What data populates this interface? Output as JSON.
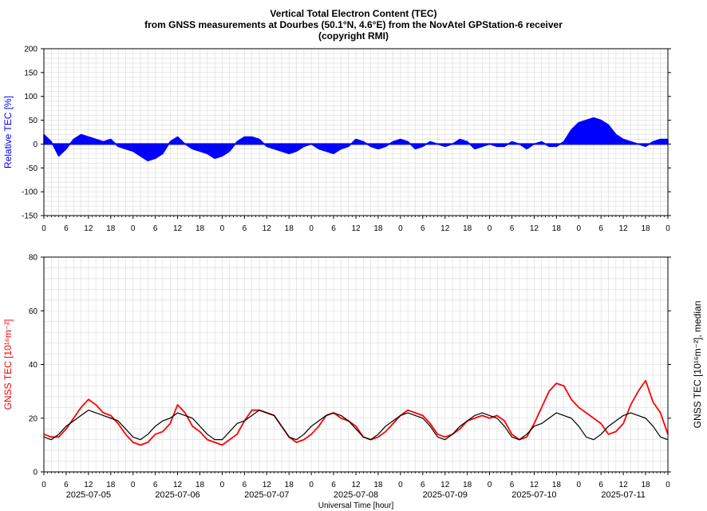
{
  "title_lines": [
    "Vertical Total Electron Content (TEC)",
    "from GNSS measurements at Dourbes (50.1°N, 4.6°E) from the NovAtel GPStation-6 receiver",
    "(copyright RMI)"
  ],
  "colors": {
    "relative": "#0000ff",
    "tec": "#ff0000",
    "median": "#000000",
    "grid": "#d9d9d9"
  },
  "chart_data": [
    {
      "type": "area",
      "ylabel": "Relative TEC [%]",
      "ylim": [
        -150,
        200
      ],
      "yticks": [
        -150,
        -100,
        -50,
        0,
        50,
        100,
        150,
        200
      ],
      "xlim": [
        0,
        168
      ],
      "xtick_labels": [
        "0",
        "6",
        "12",
        "18",
        "0",
        "6",
        "12",
        "18",
        "0",
        "6",
        "12",
        "18",
        "0",
        "6",
        "12",
        "18",
        "0",
        "6",
        "12",
        "18",
        "0",
        "6",
        "12",
        "18",
        "0",
        "6",
        "12",
        "18",
        "0"
      ],
      "grid": true,
      "series": [
        {
          "x": [
            0,
            2,
            4,
            6,
            8,
            10,
            12,
            14,
            16,
            18,
            20,
            22,
            24,
            26,
            28,
            30,
            32,
            34,
            36,
            38,
            40,
            42,
            44,
            46,
            48,
            50,
            52,
            54,
            56,
            58,
            60,
            62,
            64,
            66,
            68,
            70,
            72,
            74,
            76,
            78,
            80,
            82,
            84,
            86,
            88,
            90,
            92,
            94,
            96,
            98,
            100,
            102,
            104,
            106,
            108,
            110,
            112,
            114,
            116,
            118,
            120,
            122,
            124,
            126,
            128,
            130,
            132,
            134,
            136,
            138,
            140,
            142,
            144,
            146,
            148,
            150,
            152,
            154,
            156,
            158,
            160,
            162,
            164,
            166,
            168
          ],
          "values": [
            20,
            5,
            -25,
            -10,
            10,
            20,
            15,
            10,
            5,
            10,
            -5,
            -10,
            -15,
            -25,
            -35,
            -30,
            -20,
            5,
            15,
            0,
            -10,
            -15,
            -20,
            -30,
            -25,
            -15,
            5,
            15,
            15,
            10,
            -5,
            -10,
            -15,
            -20,
            -15,
            -5,
            0,
            -10,
            -15,
            -20,
            -10,
            -5,
            10,
            5,
            -5,
            -10,
            -5,
            5,
            10,
            5,
            -10,
            -5,
            5,
            0,
            -5,
            0,
            10,
            5,
            -10,
            -5,
            0,
            -5,
            -5,
            5,
            0,
            -10,
            0,
            5,
            -5,
            -5,
            5,
            30,
            45,
            50,
            55,
            50,
            40,
            20,
            10,
            5,
            0,
            -5,
            5,
            10,
            10
          ]
        }
      ]
    },
    {
      "type": "line",
      "ylabel": "GNSS TEC [10¹⁶m⁻²]",
      "y2label": "GNSS TEC [10¹⁶m⁻²], median",
      "xlabel": "Universal Time [hour]",
      "ylim": [
        0,
        80
      ],
      "yticks": [
        0,
        20,
        40,
        60,
        80
      ],
      "xlim": [
        0,
        168
      ],
      "xtick_labels": [
        "0",
        "6",
        "12",
        "18",
        "0",
        "6",
        "12",
        "18",
        "0",
        "6",
        "12",
        "18",
        "0",
        "6",
        "12",
        "18",
        "0",
        "6",
        "12",
        "18",
        "0",
        "6",
        "12",
        "18",
        "0",
        "6",
        "12",
        "18",
        "0"
      ],
      "date_labels": [
        "2025-07-05",
        "2025-07-06",
        "2025-07-07",
        "2025-07-08",
        "2025-07-09",
        "2025-07-10",
        "2025-07-11"
      ],
      "grid": true,
      "series": [
        {
          "x": [
            0,
            2,
            4,
            6,
            8,
            10,
            12,
            14,
            16,
            18,
            20,
            22,
            24,
            26,
            28,
            30,
            32,
            34,
            36,
            38,
            40,
            42,
            44,
            46,
            48,
            50,
            52,
            54,
            56,
            58,
            60,
            62,
            64,
            66,
            68,
            70,
            72,
            74,
            76,
            78,
            80,
            82,
            84,
            86,
            88,
            90,
            92,
            94,
            96,
            98,
            100,
            102,
            104,
            106,
            108,
            110,
            112,
            114,
            116,
            118,
            120,
            122,
            124,
            126,
            128,
            130,
            132,
            134,
            136,
            138,
            140,
            142,
            144,
            146,
            148,
            150,
            152,
            154,
            156,
            158,
            160,
            162,
            164,
            166,
            168
          ],
          "values": [
            14,
            13,
            13,
            16,
            20,
            24,
            27,
            25,
            22,
            21,
            18,
            14,
            11,
            10,
            11,
            14,
            15,
            18,
            25,
            22,
            17,
            15,
            12,
            11,
            10,
            12,
            14,
            19,
            23,
            23,
            22,
            21,
            17,
            13,
            11,
            12,
            14,
            17,
            21,
            22,
            20,
            19,
            17,
            13,
            12,
            13,
            15,
            18,
            21,
            23,
            22,
            21,
            18,
            14,
            13,
            14,
            16,
            19,
            20,
            21,
            20,
            21,
            19,
            14,
            12,
            13,
            18,
            24,
            30,
            33,
            32,
            27,
            24,
            22,
            20,
            18,
            14,
            15,
            18,
            25,
            30,
            34,
            26,
            22,
            14
          ]
        },
        {
          "x": [
            0,
            2,
            4,
            6,
            8,
            10,
            12,
            14,
            16,
            18,
            20,
            22,
            24,
            26,
            28,
            30,
            32,
            34,
            36,
            38,
            40,
            42,
            44,
            46,
            48,
            50,
            52,
            54,
            56,
            58,
            60,
            62,
            64,
            66,
            68,
            70,
            72,
            74,
            76,
            78,
            80,
            82,
            84,
            86,
            88,
            90,
            92,
            94,
            96,
            98,
            100,
            102,
            104,
            106,
            108,
            110,
            112,
            114,
            116,
            118,
            120,
            122,
            124,
            126,
            128,
            130,
            132,
            134,
            136,
            138,
            140,
            142,
            144,
            146,
            148,
            150,
            152,
            154,
            156,
            158,
            160,
            162,
            164,
            166,
            168
          ],
          "values": [
            13,
            12,
            14,
            17,
            19,
            21,
            23,
            22,
            21,
            20,
            19,
            16,
            13,
            12,
            14,
            17,
            19,
            20,
            22,
            21,
            20,
            17,
            14,
            12,
            12,
            15,
            18,
            19,
            21,
            23,
            22,
            21,
            17,
            13,
            12,
            14,
            17,
            19,
            21,
            22,
            21,
            19,
            16,
            13,
            12,
            14,
            17,
            19,
            21,
            22,
            21,
            20,
            17,
            13,
            12,
            14,
            17,
            19,
            21,
            22,
            21,
            20,
            17,
            13,
            12,
            14,
            17,
            18,
            20,
            22,
            21,
            20,
            17,
            13,
            12,
            14,
            17,
            19,
            21,
            22,
            21,
            20,
            17,
            13,
            12
          ]
        }
      ]
    }
  ]
}
